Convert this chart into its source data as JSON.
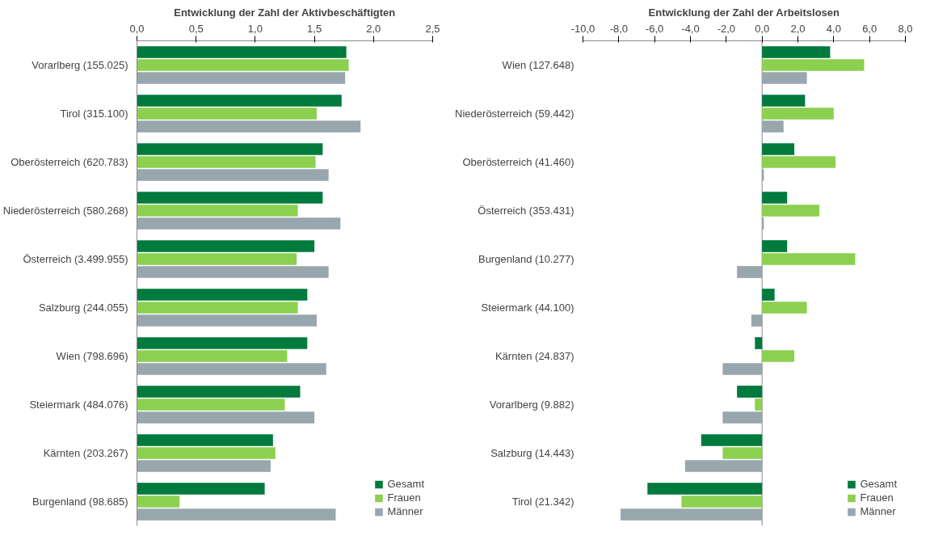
{
  "chart_data": [
    {
      "type": "bar",
      "orientation": "horizontal",
      "title": "Entwicklung der Zahl der Aktivbeschäftigten",
      "categories": [
        "Vorarlberg (155.025)",
        "Tirol (315.100)",
        "Oberösterreich (620.783)",
        "Niederösterreich (580.268)",
        "Österreich (3.499.955)",
        "Salzburg (244.055)",
        "Wien (798.696)",
        "Steiermark (484.076)",
        "Kärnten (203.267)",
        "Burgenland (98.685)"
      ],
      "series": [
        {
          "name": "Gesamt",
          "color": "#007a3d",
          "values": [
            1.77,
            1.73,
            1.57,
            1.57,
            1.5,
            1.44,
            1.44,
            1.38,
            1.15,
            1.08
          ]
        },
        {
          "name": "Frauen",
          "color": "#8cd04f",
          "values": [
            1.79,
            1.52,
            1.51,
            1.36,
            1.35,
            1.36,
            1.27,
            1.25,
            1.17,
            0.36
          ]
        },
        {
          "name": "Männer",
          "color": "#98a6ad",
          "values": [
            1.76,
            1.89,
            1.62,
            1.72,
            1.62,
            1.52,
            1.6,
            1.5,
            1.13,
            1.68
          ]
        }
      ],
      "xlim": [
        0,
        2.5
      ],
      "xticks": [
        {
          "value": 0,
          "label": "0,0"
        },
        {
          "value": 0.5,
          "label": "0,5"
        },
        {
          "value": 1,
          "label": "1,0"
        },
        {
          "value": 1.5,
          "label": "1,5"
        },
        {
          "value": 2,
          "label": "2,0"
        },
        {
          "value": 2.5,
          "label": "2,5"
        }
      ],
      "grid": false,
      "legend": "bottom right"
    },
    {
      "type": "bar",
      "orientation": "horizontal",
      "title": "Entwicklung der Zahl der Arbeitslosen",
      "categories": [
        "Wien (127.648)",
        "Niederösterreich (59.442)",
        "Oberösterreich (41.460)",
        "Österreich (353.431)",
        "Burgenland (10.277)",
        "Steiermark (44.100)",
        "Kärnten (24.837)",
        "Vorarlberg (9.882)",
        "Salzburg (14.443)",
        "Tirol (21.342)"
      ],
      "series": [
        {
          "name": "Gesamt",
          "color": "#007a3d",
          "values": [
            3.8,
            2.4,
            1.8,
            1.4,
            1.4,
            0.7,
            -0.4,
            -1.4,
            -3.4,
            -6.4
          ]
        },
        {
          "name": "Frauen",
          "color": "#8cd04f",
          "values": [
            5.7,
            4.0,
            4.1,
            3.2,
            5.2,
            2.5,
            1.8,
            -0.4,
            -2.2,
            -4.5
          ]
        },
        {
          "name": "Männer",
          "color": "#98a6ad",
          "values": [
            2.5,
            1.2,
            0.1,
            0.1,
            -1.4,
            -0.6,
            -2.2,
            -2.2,
            -4.3,
            -7.9
          ]
        }
      ],
      "xlim": [
        -10,
        8
      ],
      "xticks": [
        {
          "value": -10,
          "label": "-10,0"
        },
        {
          "value": -8,
          "label": "-8,0"
        },
        {
          "value": -6,
          "label": "-6,0"
        },
        {
          "value": -4,
          "label": "-4,0"
        },
        {
          "value": -2,
          "label": "-2,0"
        },
        {
          "value": 0,
          "label": "0,0"
        },
        {
          "value": 2,
          "label": "2,0"
        },
        {
          "value": 4,
          "label": "4,0"
        },
        {
          "value": 6,
          "label": "6,0"
        },
        {
          "value": 8,
          "label": "8,0"
        }
      ],
      "ref_lines": [
        {
          "axis": "x",
          "value": 0
        }
      ],
      "grid": false,
      "legend": "bottom right"
    }
  ]
}
